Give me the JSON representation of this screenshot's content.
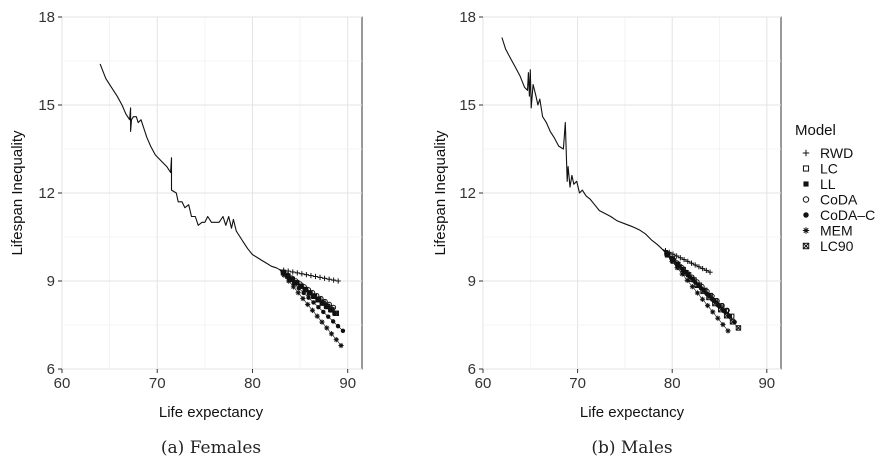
{
  "legend": {
    "title": "Model",
    "items": [
      {
        "label": "RWD",
        "marker": "plus"
      },
      {
        "label": "LC",
        "marker": "open-square"
      },
      {
        "label": "LL",
        "marker": "filled-square"
      },
      {
        "label": "CoDA",
        "marker": "open-circle"
      },
      {
        "label": "CoDA–C",
        "marker": "filled-circle"
      },
      {
        "label": "MEM",
        "marker": "asterisk"
      },
      {
        "label": "LC90",
        "marker": "crossed-square"
      }
    ]
  },
  "chart_data": [
    {
      "type": "line",
      "caption": "(a) Females",
      "xlabel": "Life expectancy",
      "ylabel": "Lifespan Inequality",
      "xlim": [
        60,
        91.5
      ],
      "ylim": [
        6,
        18
      ],
      "xticks": [
        60,
        70,
        80,
        90
      ],
      "yticks": [
        6,
        9,
        12,
        15,
        18
      ],
      "grid": true,
      "historical": [
        [
          64.0,
          16.4
        ],
        [
          64.6,
          15.9
        ],
        [
          65.2,
          15.6
        ],
        [
          65.8,
          15.3
        ],
        [
          66.3,
          15.0
        ],
        [
          66.7,
          14.7
        ],
        [
          67.1,
          14.5
        ],
        [
          67.2,
          14.9
        ],
        [
          67.2,
          14.1
        ],
        [
          67.3,
          14.5
        ],
        [
          67.5,
          14.6
        ],
        [
          67.8,
          14.6
        ],
        [
          68.0,
          14.4
        ],
        [
          68.3,
          14.5
        ],
        [
          68.6,
          14.2
        ],
        [
          68.9,
          13.9
        ],
        [
          69.3,
          13.6
        ],
        [
          69.8,
          13.3
        ],
        [
          70.4,
          13.1
        ],
        [
          71.0,
          12.9
        ],
        [
          71.4,
          12.7
        ],
        [
          71.5,
          13.2
        ],
        [
          71.5,
          12.1
        ],
        [
          72.0,
          12.0
        ],
        [
          72.2,
          11.7
        ],
        [
          72.6,
          11.7
        ],
        [
          72.9,
          11.5
        ],
        [
          73.3,
          11.6
        ],
        [
          73.6,
          11.2
        ],
        [
          74.0,
          11.2
        ],
        [
          74.3,
          10.9
        ],
        [
          74.7,
          11.0
        ],
        [
          75.0,
          11.0
        ],
        [
          75.3,
          11.2
        ],
        [
          75.7,
          11.0
        ],
        [
          76.1,
          11.0
        ],
        [
          76.5,
          11.0
        ],
        [
          76.9,
          11.2
        ],
        [
          77.2,
          10.9
        ],
        [
          77.5,
          11.2
        ],
        [
          77.8,
          10.8
        ],
        [
          78.0,
          11.1
        ],
        [
          78.3,
          10.7
        ],
        [
          78.7,
          10.5
        ],
        [
          79.1,
          10.3
        ],
        [
          79.5,
          10.1
        ],
        [
          80.0,
          9.9
        ],
        [
          80.5,
          9.8
        ],
        [
          81.0,
          9.7
        ],
        [
          81.5,
          9.6
        ],
        [
          82.0,
          9.5
        ],
        [
          82.5,
          9.45
        ],
        [
          82.8,
          9.4
        ]
      ],
      "series": [
        {
          "name": "RWD",
          "marker": "plus",
          "start": [
            82.8,
            9.4
          ],
          "end": [
            89.0,
            9.0
          ]
        },
        {
          "name": "LC",
          "marker": "open-square",
          "start": [
            82.8,
            9.4
          ],
          "end": [
            88.7,
            7.9
          ]
        },
        {
          "name": "LL",
          "marker": "filled-square",
          "start": [
            82.8,
            9.4
          ],
          "end": [
            88.6,
            7.9
          ]
        },
        {
          "name": "CoDA",
          "marker": "open-circle",
          "start": [
            82.8,
            9.4
          ],
          "end": [
            88.5,
            8.1
          ]
        },
        {
          "name": "CoDA–C",
          "marker": "filled-circle",
          "start": [
            82.8,
            9.4
          ],
          "end": [
            89.5,
            7.3
          ]
        },
        {
          "name": "MEM",
          "marker": "asterisk",
          "start": [
            82.8,
            9.4
          ],
          "end": [
            89.3,
            6.8
          ]
        },
        {
          "name": "LC90",
          "marker": "crossed-square",
          "start": [
            82.8,
            9.4
          ],
          "end": [
            88.8,
            7.9
          ]
        }
      ]
    },
    {
      "type": "line",
      "caption": "(b) Males",
      "xlabel": "Life expectancy",
      "ylabel": "Lifespan Inequality",
      "xlim": [
        60,
        91.5
      ],
      "ylim": [
        6,
        18
      ],
      "xticks": [
        60,
        70,
        80,
        90
      ],
      "yticks": [
        6,
        9,
        12,
        15,
        18
      ],
      "grid": true,
      "historical": [
        [
          62.0,
          17.3
        ],
        [
          62.4,
          16.9
        ],
        [
          62.9,
          16.6
        ],
        [
          63.4,
          16.3
        ],
        [
          63.9,
          16.0
        ],
        [
          64.4,
          15.6
        ],
        [
          64.7,
          15.5
        ],
        [
          64.8,
          16.1
        ],
        [
          64.9,
          15.3
        ],
        [
          65.0,
          16.2
        ],
        [
          65.1,
          14.9
        ],
        [
          65.3,
          15.7
        ],
        [
          65.6,
          15.3
        ],
        [
          65.8,
          15.0
        ],
        [
          66.0,
          15.2
        ],
        [
          66.3,
          14.6
        ],
        [
          66.7,
          14.4
        ],
        [
          67.1,
          14.1
        ],
        [
          67.5,
          13.9
        ],
        [
          68.0,
          13.6
        ],
        [
          68.5,
          13.5
        ],
        [
          68.7,
          14.4
        ],
        [
          68.9,
          12.4
        ],
        [
          69.0,
          12.9
        ],
        [
          69.2,
          12.2
        ],
        [
          69.4,
          12.6
        ],
        [
          69.6,
          12.3
        ],
        [
          69.9,
          12.4
        ],
        [
          70.2,
          12.0
        ],
        [
          70.5,
          12.1
        ],
        [
          70.9,
          11.9
        ],
        [
          71.3,
          11.8
        ],
        [
          71.8,
          11.6
        ],
        [
          72.3,
          11.4
        ],
        [
          72.9,
          11.3
        ],
        [
          73.5,
          11.2
        ],
        [
          74.2,
          11.05
        ],
        [
          75.0,
          10.95
        ],
        [
          75.8,
          10.85
        ],
        [
          76.5,
          10.75
        ],
        [
          77.2,
          10.6
        ],
        [
          77.8,
          10.4
        ],
        [
          78.4,
          10.25
        ],
        [
          78.9,
          10.1
        ]
      ],
      "series": [
        {
          "name": "RWD",
          "marker": "plus",
          "start": [
            78.9,
            10.1
          ],
          "end": [
            84.0,
            9.3
          ]
        },
        {
          "name": "LC",
          "marker": "open-square",
          "start": [
            78.9,
            10.1
          ],
          "end": [
            86.3,
            7.8
          ]
        },
        {
          "name": "LL",
          "marker": "filled-square",
          "start": [
            78.9,
            10.1
          ],
          "end": [
            86.1,
            7.8
          ]
        },
        {
          "name": "CoDA",
          "marker": "open-circle",
          "start": [
            78.9,
            10.1
          ],
          "end": [
            85.8,
            8.0
          ]
        },
        {
          "name": "CoDA–C",
          "marker": "filled-circle",
          "start": [
            78.9,
            10.1
          ],
          "end": [
            86.6,
            7.6
          ]
        },
        {
          "name": "MEM",
          "marker": "asterisk",
          "start": [
            78.9,
            10.1
          ],
          "end": [
            85.9,
            7.3
          ]
        },
        {
          "name": "LC90",
          "marker": "crossed-square",
          "start": [
            78.9,
            10.1
          ],
          "end": [
            87.0,
            7.4
          ]
        }
      ]
    }
  ]
}
